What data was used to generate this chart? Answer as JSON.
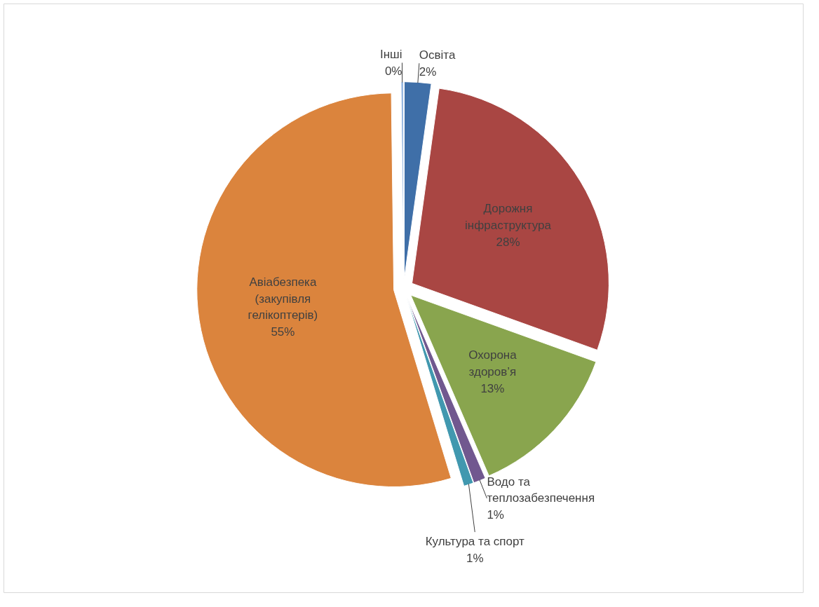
{
  "chart_data": {
    "type": "pie",
    "categories": [
      "Освіта",
      "Дорожня інфраструктура",
      "Охорона здоров’я",
      "Водо та теплозабезпечення",
      "Культура та спорт",
      "Авіабезпека (закупівля гелікоптерів)",
      "Інші"
    ],
    "values": [
      2.2,
      28.3,
      13.0,
      1.0,
      0.8,
      54.5,
      0.2
    ],
    "colors": [
      "#3f6fa8",
      "#a94643",
      "#89a54e",
      "#71588f",
      "#4198af",
      "#db843d",
      "#93b5e0"
    ],
    "value_labels": [
      "2%",
      "28%",
      "13%",
      "1%",
      "1%",
      "55%",
      "0%"
    ]
  }
}
